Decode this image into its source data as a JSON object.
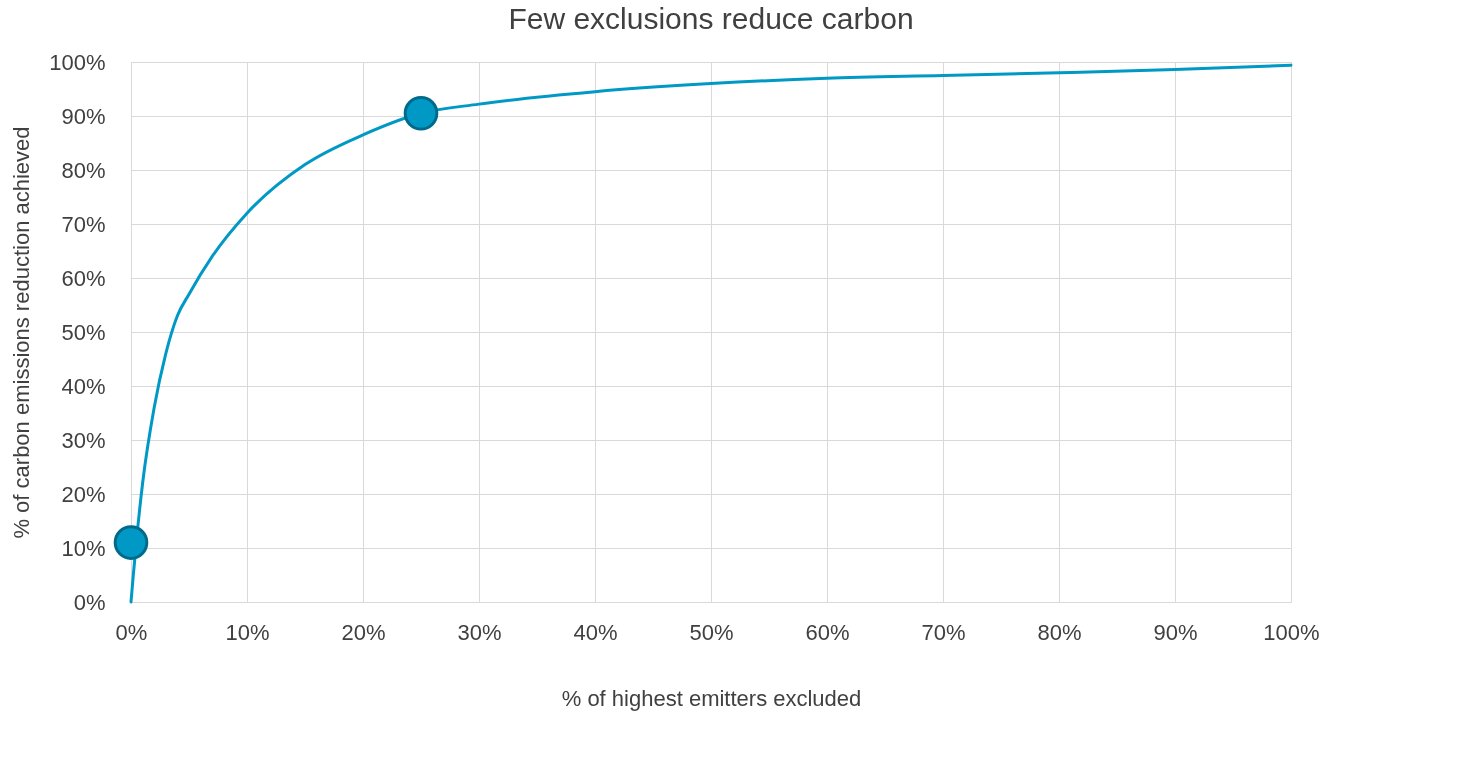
{
  "chart_data": {
    "type": "line",
    "title": "Few exclusions reduce carbon",
    "xlabel": "% of highest emitters excluded",
    "ylabel": "% of carbon emissions reduction achieved",
    "xlim": [
      0,
      100
    ],
    "ylim": [
      0,
      100
    ],
    "xticks": [
      {
        "value": 0,
        "label": "0%"
      },
      {
        "value": 10,
        "label": "10%"
      },
      {
        "value": 20,
        "label": "20%"
      },
      {
        "value": 30,
        "label": "30%"
      },
      {
        "value": 40,
        "label": "40%"
      },
      {
        "value": 50,
        "label": "50%"
      },
      {
        "value": 60,
        "label": "60%"
      },
      {
        "value": 70,
        "label": "70%"
      },
      {
        "value": 80,
        "label": "80%"
      },
      {
        "value": 90,
        "label": "90%"
      },
      {
        "value": 100,
        "label": "100%"
      }
    ],
    "yticks": [
      {
        "value": 0,
        "label": "0%"
      },
      {
        "value": 10,
        "label": "10%"
      },
      {
        "value": 20,
        "label": "20%"
      },
      {
        "value": 30,
        "label": "30%"
      },
      {
        "value": 40,
        "label": "40%"
      },
      {
        "value": 50,
        "label": "50%"
      },
      {
        "value": 60,
        "label": "60%"
      },
      {
        "value": 70,
        "label": "70%"
      },
      {
        "value": 80,
        "label": "80%"
      },
      {
        "value": 90,
        "label": "90%"
      },
      {
        "value": 100,
        "label": "100%"
      }
    ],
    "grid": true,
    "legend": false,
    "series": [
      {
        "color": "#0099c6",
        "marker": "none",
        "line_style": "solid",
        "x": [
          0,
          0.2,
          0.5,
          1,
          2,
          3,
          4,
          5,
          7,
          10,
          15,
          20,
          25,
          30,
          40,
          50,
          60,
          70,
          80,
          90,
          100
        ],
        "values": [
          0,
          5,
          12,
          22,
          36,
          46,
          53,
          57,
          64,
          72,
          81,
          86.5,
          90.5,
          92.2,
          94.5,
          96,
          97,
          97.5,
          98,
          98.6,
          99.4
        ]
      },
      {
        "type": "scatter",
        "color": "#0099c6",
        "marker": "circle",
        "x": [
          0,
          25
        ],
        "values": [
          11,
          90.5
        ]
      }
    ]
  }
}
